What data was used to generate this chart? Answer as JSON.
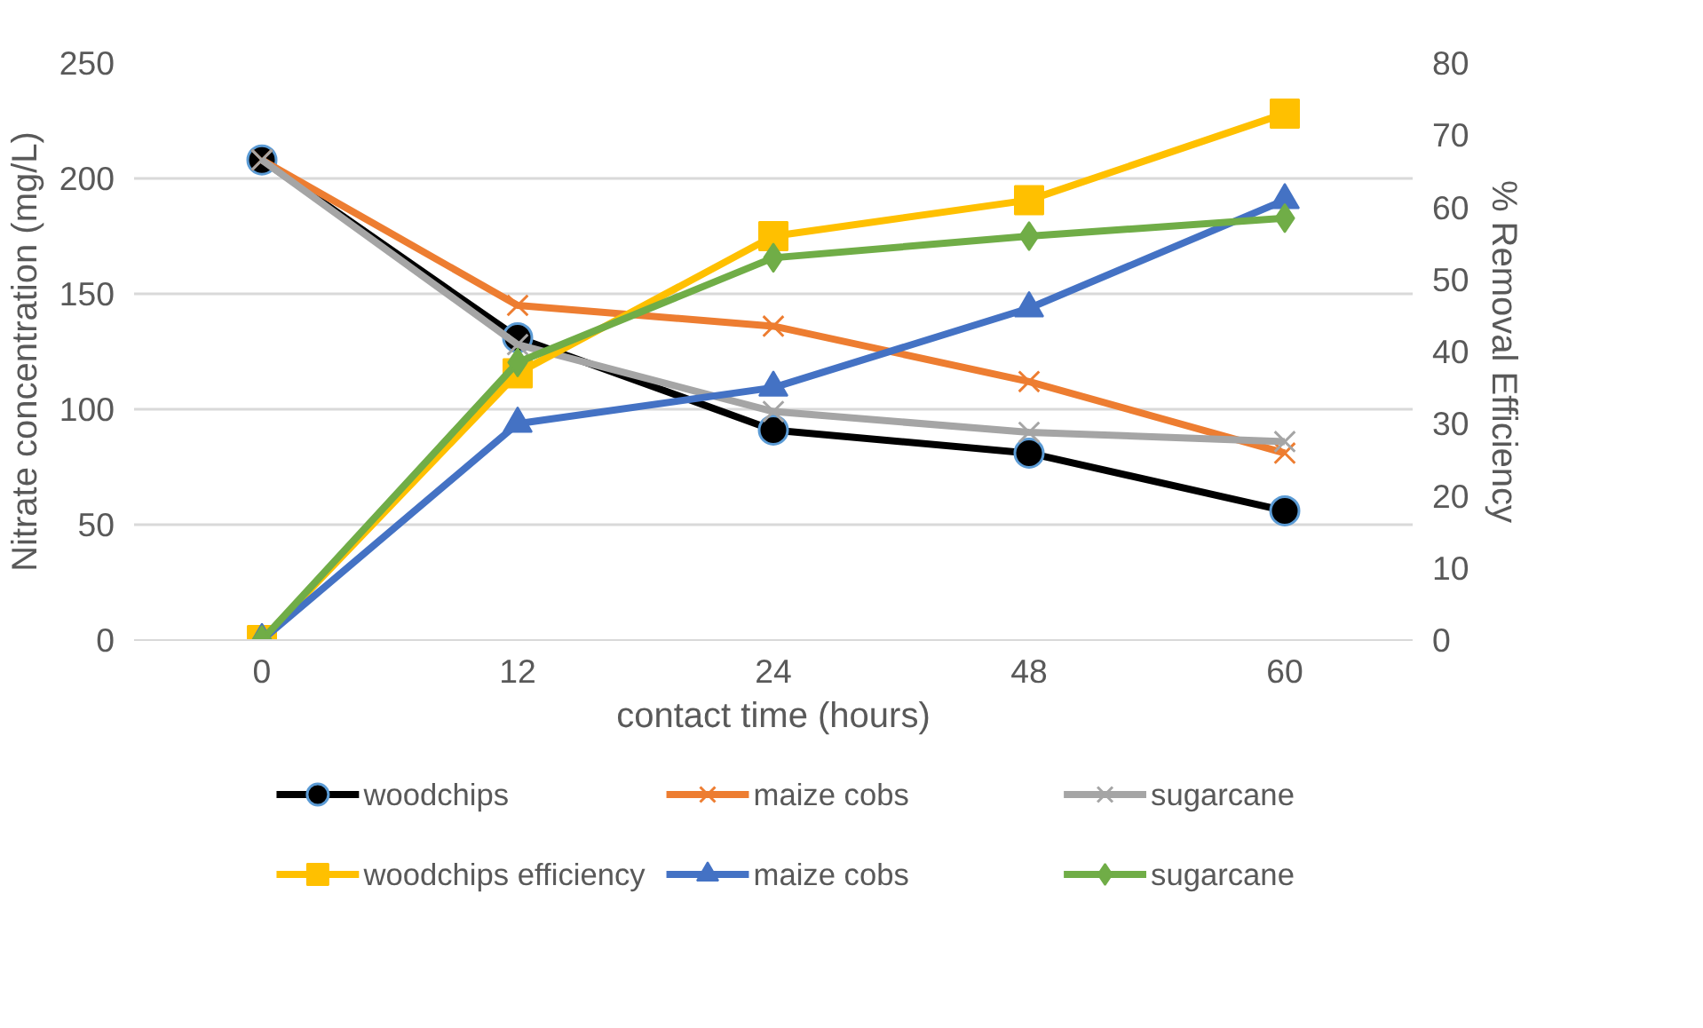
{
  "chart_data": {
    "type": "line",
    "xlabel": "contact time (hours)",
    "ylabel": "Nitrate concentration (mg/L)",
    "y2label": "% Removal Efficiency",
    "categories": [
      "0",
      "12",
      "24",
      "48",
      "60"
    ],
    "ylim": [
      0,
      250
    ],
    "yticks": [
      0,
      50,
      100,
      150,
      200,
      250
    ],
    "y2lim": [
      0,
      80
    ],
    "y2ticks": [
      0,
      10,
      20,
      30,
      40,
      50,
      60,
      70,
      80
    ],
    "grid": "y",
    "legend": "bottom",
    "series": [
      {
        "name": "woodchips",
        "color": "#000000",
        "marker": "circle",
        "values": [
          208,
          131,
          91,
          81,
          56
        ]
      },
      {
        "name": "maize cobs",
        "color": "#ed7d31",
        "marker": "cross",
        "values": [
          208,
          145,
          136,
          112,
          81
        ]
      },
      {
        "name": "sugarcane",
        "color": "#a5a5a5",
        "marker": "cross",
        "values": [
          208,
          128,
          99,
          90,
          86
        ]
      },
      {
        "name": "woodchips efficiency",
        "color": "#ffc000",
        "marker": "square",
        "axis": "y2",
        "values": [
          0,
          37,
          56,
          61,
          73
        ]
      },
      {
        "name": "maize cobs",
        "color": "#4472c4",
        "marker": "triangle",
        "axis": "y2",
        "values": [
          0,
          30,
          35,
          46,
          61
        ]
      },
      {
        "name": "sugarcane",
        "color": "#70ad47",
        "marker": "diamond",
        "axis": "y2",
        "values": [
          0,
          38.5,
          53,
          56,
          58.5
        ]
      }
    ]
  }
}
